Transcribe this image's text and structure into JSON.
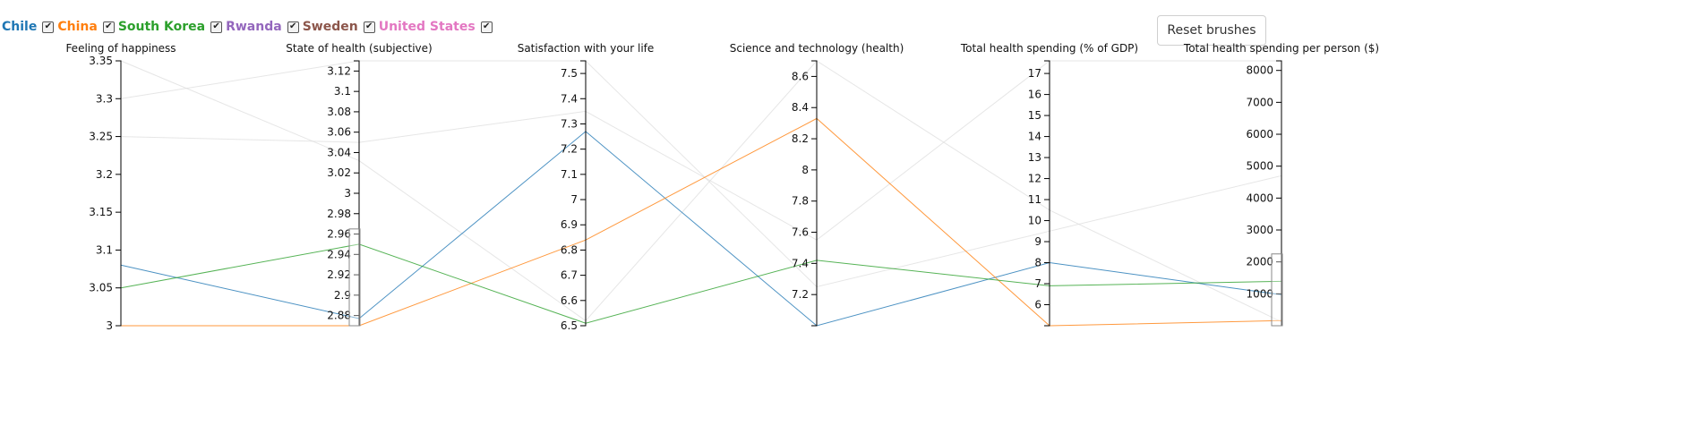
{
  "legend": [
    {
      "name": "Chile",
      "color": "#1f77b4",
      "checked": true
    },
    {
      "name": "China",
      "color": "#ff7f0e",
      "checked": true
    },
    {
      "name": "South Korea",
      "color": "#2ca02c",
      "checked": true
    },
    {
      "name": "Rwanda",
      "color": "#9467bd",
      "checked": true
    },
    {
      "name": "Sweden",
      "color": "#8c564b",
      "checked": true
    },
    {
      "name": "United States",
      "color": "#e377c2",
      "checked": true
    }
  ],
  "toolbar": {
    "reset_label": "Reset brushes"
  },
  "chart_data": {
    "type": "parallel-coordinates",
    "axes": [
      {
        "title": "Feeling of happiness",
        "range": [
          3,
          3.35
        ],
        "ticks": [
          3,
          3.05,
          3.1,
          3.15,
          3.2,
          3.25,
          3.3,
          3.35
        ],
        "tick_labels": [
          "3",
          "3.05",
          "3.1",
          "3.15",
          "3.2",
          "3.25",
          "3.3",
          "3.35"
        ]
      },
      {
        "title": "State of health (subjective)",
        "range": [
          2.87,
          3.13
        ],
        "ticks": [
          2.88,
          2.9,
          2.92,
          2.94,
          2.96,
          2.98,
          3,
          3.02,
          3.04,
          3.06,
          3.08,
          3.1,
          3.12
        ],
        "tick_labels": [
          "2.88",
          "2.9",
          "2.92",
          "2.94",
          "2.96",
          "2.98",
          "3",
          "3.02",
          "3.04",
          "3.06",
          "3.08",
          "3.1",
          "3.12"
        ],
        "brush": [
          2.87,
          2.965
        ]
      },
      {
        "title": "Satisfaction with your life",
        "range": [
          6.5,
          7.55
        ],
        "ticks": [
          6.5,
          6.6,
          6.7,
          6.8,
          6.9,
          7,
          7.1,
          7.2,
          7.3,
          7.4,
          7.5
        ],
        "tick_labels": [
          "6.5",
          "6.6",
          "6.7",
          "6.8",
          "6.9",
          "7",
          "7.1",
          "7.2",
          "7.3",
          "7.4",
          "7.5"
        ]
      },
      {
        "title": "Science and technology (health)",
        "range": [
          7.0,
          8.7
        ],
        "ticks": [
          7.2,
          7.4,
          7.6,
          7.8,
          8,
          8.2,
          8.4,
          8.6
        ],
        "tick_labels": [
          "7.2",
          "7.4",
          "7.6",
          "7.8",
          "8",
          "8.2",
          "8.4",
          "8.6"
        ]
      },
      {
        "title": "Total health spending (% of GDP)",
        "range": [
          5.0,
          17.6
        ],
        "ticks": [
          6,
          7,
          8,
          9,
          10,
          11,
          12,
          13,
          14,
          15,
          16,
          17
        ],
        "tick_labels": [
          "6",
          "7",
          "8",
          "9",
          "10",
          "11",
          "12",
          "13",
          "14",
          "15",
          "16",
          "17"
        ]
      },
      {
        "title": "Total health spending per person ($)",
        "range": [
          0,
          8300
        ],
        "ticks": [
          1000,
          2000,
          3000,
          4000,
          5000,
          6000,
          7000,
          8000
        ],
        "tick_labels": [
          "1000",
          "2000",
          "3000",
          "4000",
          "5000",
          "6000",
          "7000",
          "8000"
        ],
        "brush": [
          0,
          2250
        ]
      }
    ],
    "series": [
      {
        "name": "Chile",
        "color": "#1f77b4",
        "active": true,
        "values": [
          3.08,
          2.877,
          7.27,
          7.0,
          8.0,
          970
        ]
      },
      {
        "name": "China",
        "color": "#ff7f0e",
        "active": true,
        "values": [
          3.0,
          2.87,
          6.84,
          8.33,
          5.0,
          160
        ]
      },
      {
        "name": "South Korea",
        "color": "#2ca02c",
        "active": true,
        "values": [
          3.05,
          2.95,
          6.51,
          7.42,
          6.9,
          1390
        ]
      },
      {
        "name": "Rwanda",
        "color": "#9467bd",
        "active": false,
        "values": [
          3.35,
          3.032,
          6.52,
          8.7,
          10.5,
          120
        ]
      },
      {
        "name": "Sweden",
        "color": "#8c564b",
        "active": false,
        "values": [
          3.3,
          3.13,
          7.55,
          7.25,
          9.5,
          4700
        ]
      },
      {
        "name": "United States",
        "color": "#e377c2",
        "active": false,
        "values": [
          3.25,
          3.05,
          7.35,
          7.55,
          17.6,
          8300
        ]
      }
    ]
  }
}
